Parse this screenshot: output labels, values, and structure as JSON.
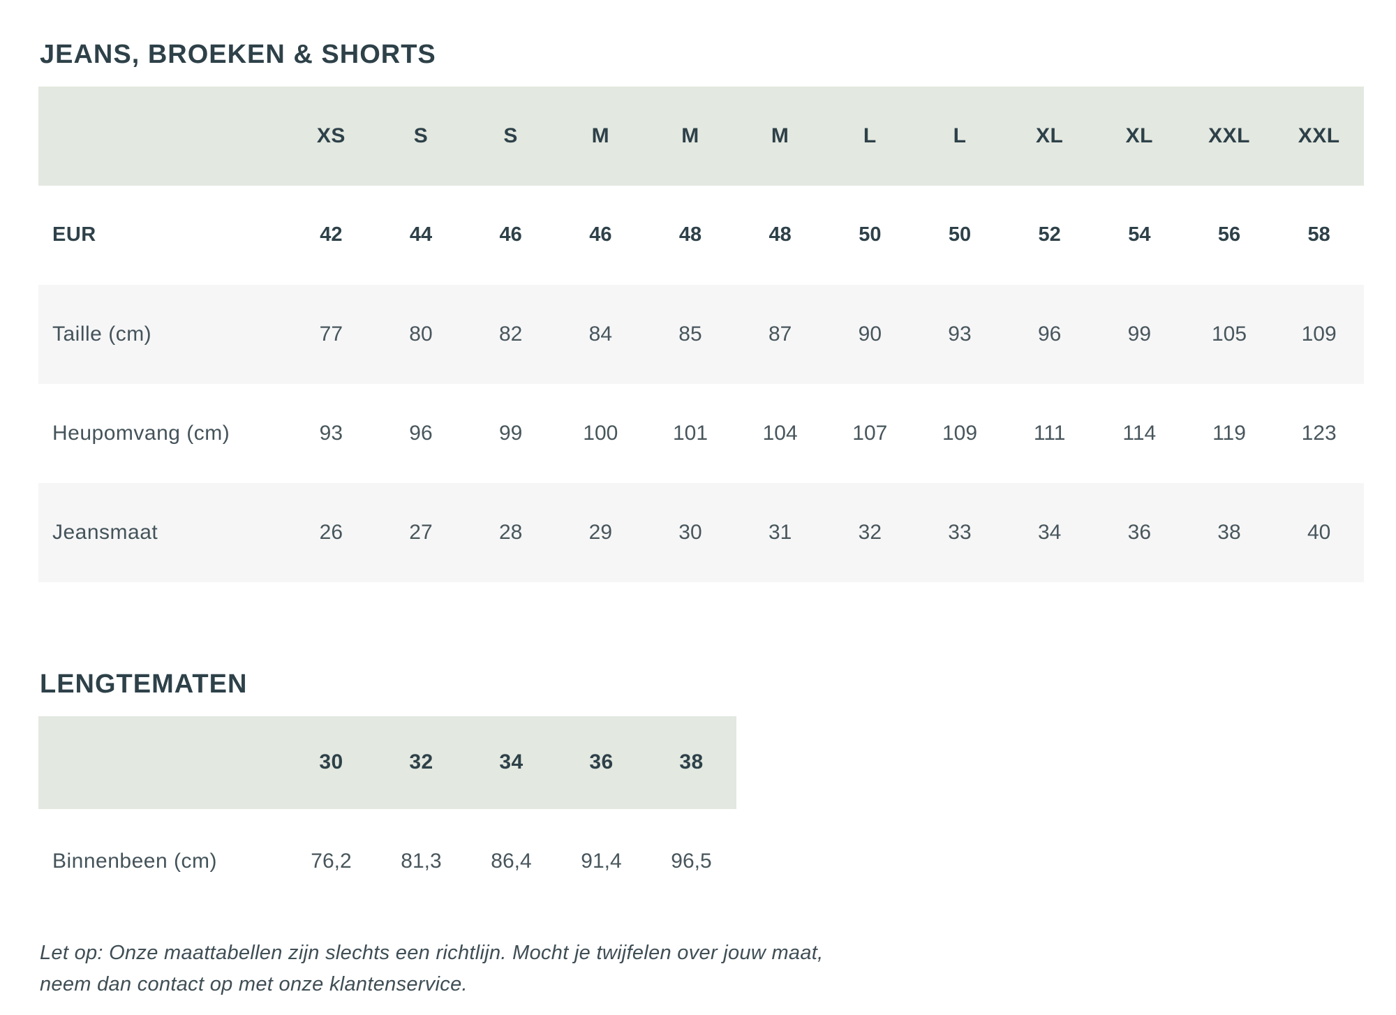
{
  "colors": {
    "header_band": "#e3e8e0",
    "row_shaded": "#f6f6f7",
    "title_text": "#2e4149",
    "value_text": "#48565c"
  },
  "section1": {
    "title": "JEANS, BROEKEN & SHORTS",
    "size_headers": [
      "XS",
      "S",
      "S",
      "M",
      "M",
      "M",
      "L",
      "L",
      "XL",
      "XL",
      "XXL",
      "XXL"
    ],
    "rows": [
      {
        "label": "EUR",
        "bold": true,
        "shaded": false,
        "values": [
          "42",
          "44",
          "46",
          "46",
          "48",
          "48",
          "50",
          "50",
          "52",
          "54",
          "56",
          "58"
        ]
      },
      {
        "label": "Taille (cm)",
        "bold": false,
        "shaded": true,
        "values": [
          "77",
          "80",
          "82",
          "84",
          "85",
          "87",
          "90",
          "93",
          "96",
          "99",
          "105",
          "109"
        ]
      },
      {
        "label": "Heupomvang (cm)",
        "bold": false,
        "shaded": false,
        "values": [
          "93",
          "96",
          "99",
          "100",
          "101",
          "104",
          "107",
          "109",
          "111",
          "114",
          "119",
          "123"
        ]
      },
      {
        "label": "Jeansmaat",
        "bold": false,
        "shaded": true,
        "values": [
          "26",
          "27",
          "28",
          "29",
          "30",
          "31",
          "32",
          "33",
          "34",
          "36",
          "38",
          "40"
        ]
      }
    ]
  },
  "section2": {
    "title": "LENGTEMATEN",
    "size_headers": [
      "30",
      "32",
      "34",
      "36",
      "38"
    ],
    "rows": [
      {
        "label": "Binnenbeen (cm)",
        "bold": false,
        "shaded": false,
        "values": [
          "76,2",
          "81,3",
          "86,4",
          "91,4",
          "96,5"
        ]
      }
    ]
  },
  "footer": {
    "note_line1": "Let op: Onze maattabellen zijn slechts een richtlijn. Mocht je twijfelen over jouw maat,",
    "note_line2": "neem dan contact op met onze klantenservice."
  }
}
